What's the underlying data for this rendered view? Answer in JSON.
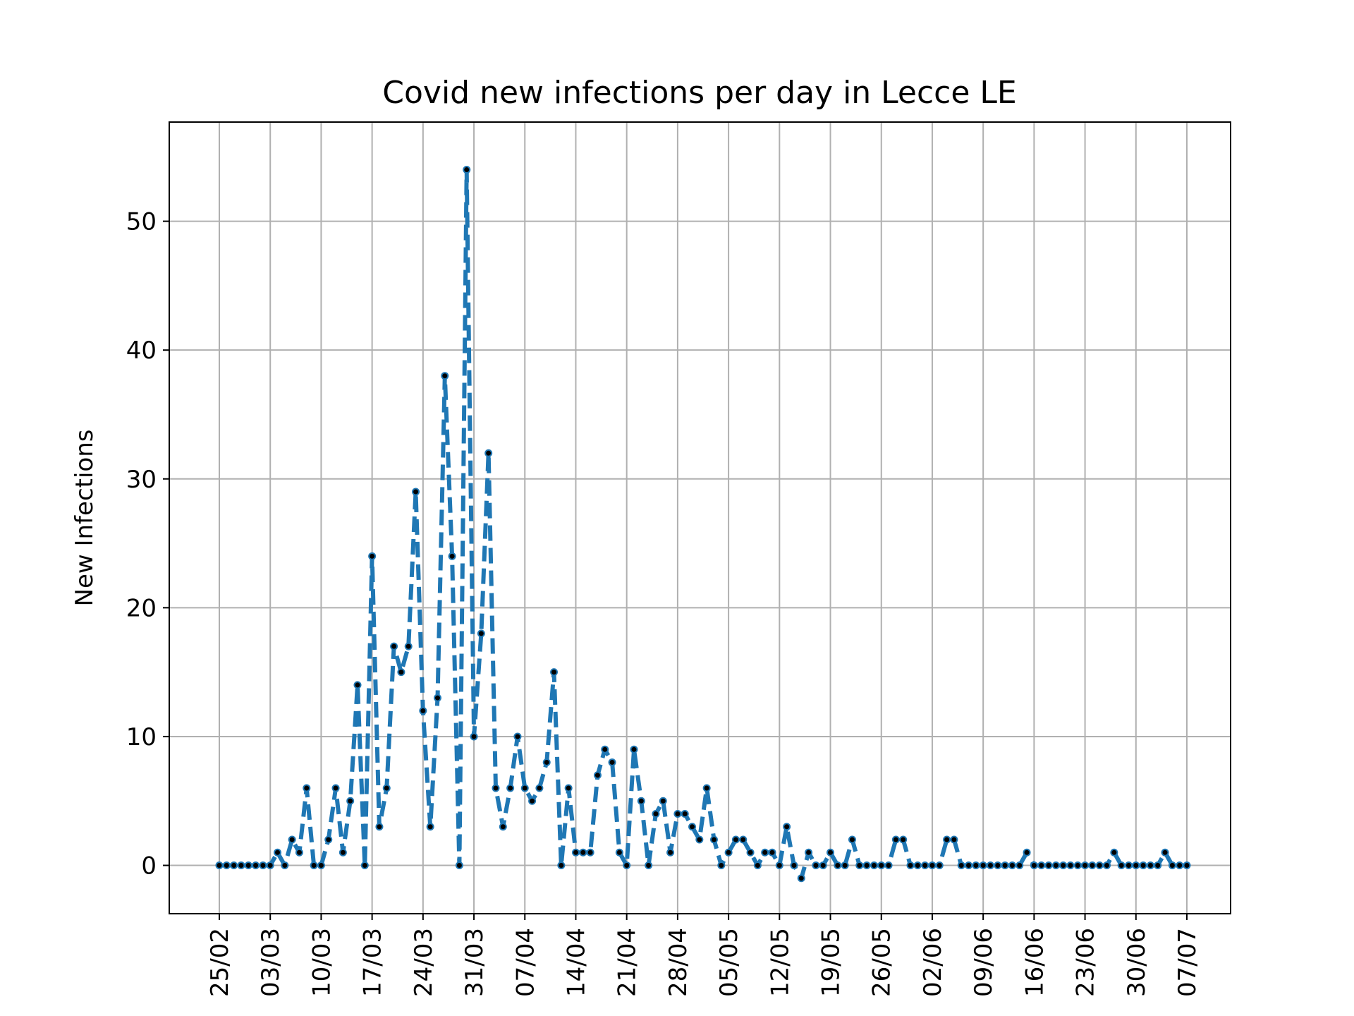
{
  "chart_data": {
    "type": "line",
    "title": "Covid new infections per day in Lecce LE",
    "xlabel": "",
    "ylabel": "New Infections",
    "grid": true,
    "x_start": "25/02",
    "x_tick_labels": [
      "25/02",
      "03/03",
      "10/03",
      "17/03",
      "24/03",
      "31/03",
      "07/04",
      "14/04",
      "21/04",
      "28/04",
      "05/05",
      "12/05",
      "19/05",
      "26/05",
      "02/06",
      "09/06",
      "16/06",
      "23/06",
      "30/06",
      "07/07"
    ],
    "y_ticks": [
      0,
      10,
      20,
      30,
      40,
      50
    ],
    "ylim": [
      -3.75,
      57.7
    ],
    "x_range_labels": [
      "25/02",
      "07/07"
    ],
    "series": [
      {
        "color": "#1f77b4",
        "marker_color": "#000000",
        "line_style": "dashed",
        "values": [
          0,
          0,
          0,
          0,
          0,
          0,
          0,
          0,
          1,
          0,
          2,
          1,
          6,
          0,
          0,
          2,
          6,
          1,
          5,
          14,
          0,
          24,
          3,
          6,
          17,
          15,
          17,
          29,
          12,
          3,
          13,
          38,
          24,
          0,
          54,
          10,
          18,
          32,
          6,
          3,
          6,
          10,
          6,
          5,
          6,
          8,
          15,
          0,
          6,
          1,
          1,
          1,
          7,
          9,
          8,
          1,
          0,
          9,
          5,
          0,
          4,
          5,
          1,
          4,
          4,
          3,
          2,
          6,
          2,
          0,
          1,
          2,
          2,
          1,
          0,
          1,
          1,
          0,
          3,
          0,
          -1,
          1,
          0,
          0,
          1,
          0,
          0,
          2,
          0,
          0,
          0,
          0,
          0,
          2,
          2,
          0,
          0,
          0,
          0,
          0,
          2,
          2,
          0,
          0,
          0,
          0,
          0,
          0,
          0,
          0,
          0,
          1,
          0,
          0,
          0,
          0,
          0,
          0,
          0,
          0,
          0,
          0,
          0,
          1,
          0,
          0,
          0,
          0,
          0,
          0,
          1,
          0,
          0,
          0
        ]
      }
    ]
  }
}
